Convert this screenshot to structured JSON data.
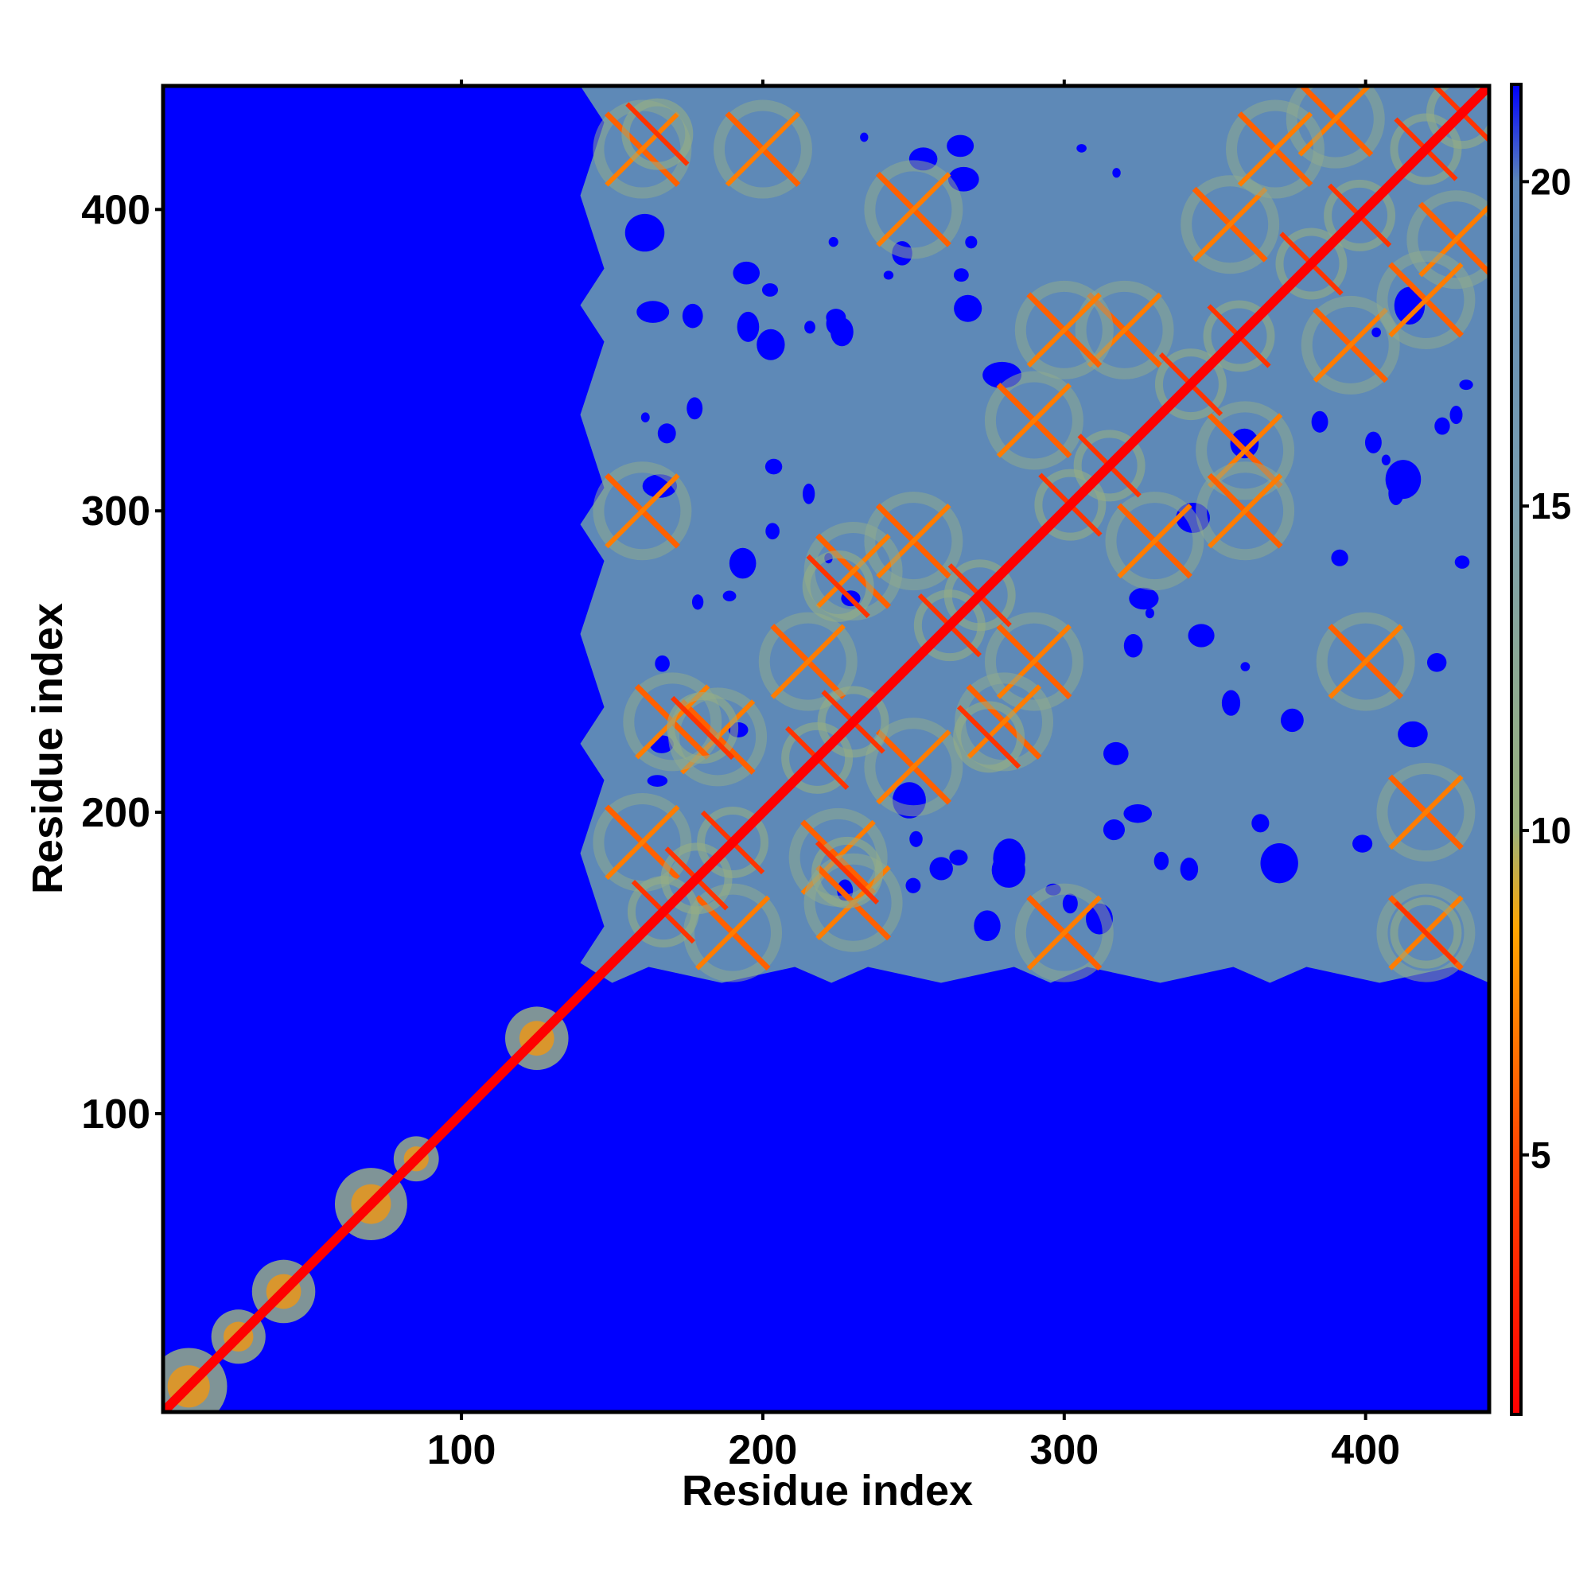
{
  "chart_data": {
    "type": "heatmap",
    "title": "",
    "xlabel": "Residue index",
    "ylabel": "Residue index",
    "xlim": [
      1,
      441
    ],
    "ylim": [
      1,
      441
    ],
    "x_ticks": [
      100,
      200,
      300,
      400
    ],
    "y_ticks": [
      100,
      200,
      300,
      400
    ],
    "colorbar": {
      "range": [
        1,
        21.5
      ],
      "ticks": [
        5,
        10,
        15,
        20
      ],
      "stops": [
        {
          "value": 1,
          "color": "#ff0000"
        },
        {
          "value": 5,
          "color": "#ff4500"
        },
        {
          "value": 8.5,
          "color": "#ffa500"
        },
        {
          "value": 10,
          "color": "#9cb27a"
        },
        {
          "value": 15,
          "color": "#7a9fb0"
        },
        {
          "value": 20,
          "color": "#5b86b8"
        },
        {
          "value": 21.5,
          "color": "#0000ff"
        }
      ]
    },
    "background_value": 21.5,
    "cluster_value": 19.5,
    "diagonal_value": 1,
    "structured_region": {
      "x": [
        150,
        441
      ],
      "y": [
        150,
        441
      ]
    },
    "local_domains": [
      {
        "start": 1,
        "end": 18
      },
      {
        "start": 20,
        "end": 32
      },
      {
        "start": 34,
        "end": 48
      },
      {
        "start": 62,
        "end": 78
      },
      {
        "start": 80,
        "end": 90
      },
      {
        "start": 118,
        "end": 132
      }
    ],
    "hairpin_centers": [
      [
        167,
        167
      ],
      [
        178,
        178
      ],
      [
        190,
        190
      ],
      [
        218,
        218
      ],
      [
        230,
        230
      ],
      [
        262,
        262
      ],
      [
        272,
        272
      ],
      [
        302,
        302
      ],
      [
        315,
        315
      ],
      [
        342,
        342
      ],
      [
        358,
        358
      ],
      [
        382,
        382
      ],
      [
        398,
        398
      ],
      [
        420,
        420
      ],
      [
        432,
        432
      ],
      [
        165,
        425
      ],
      [
        420,
        160
      ],
      [
        228,
        180
      ],
      [
        180,
        228
      ],
      [
        275,
        225
      ],
      [
        225,
        275
      ]
    ],
    "contact_pairs": [
      [
        160,
        190
      ],
      [
        185,
        225
      ],
      [
        215,
        250
      ],
      [
        250,
        290
      ],
      [
        290,
        330
      ],
      [
        320,
        360
      ],
      [
        355,
        395
      ],
      [
        390,
        430
      ],
      [
        170,
        230
      ],
      [
        230,
        280
      ],
      [
        300,
        360
      ],
      [
        370,
        420
      ],
      [
        160,
        420
      ],
      [
        200,
        420
      ],
      [
        250,
        400
      ],
      [
        160,
        300
      ]
    ]
  }
}
